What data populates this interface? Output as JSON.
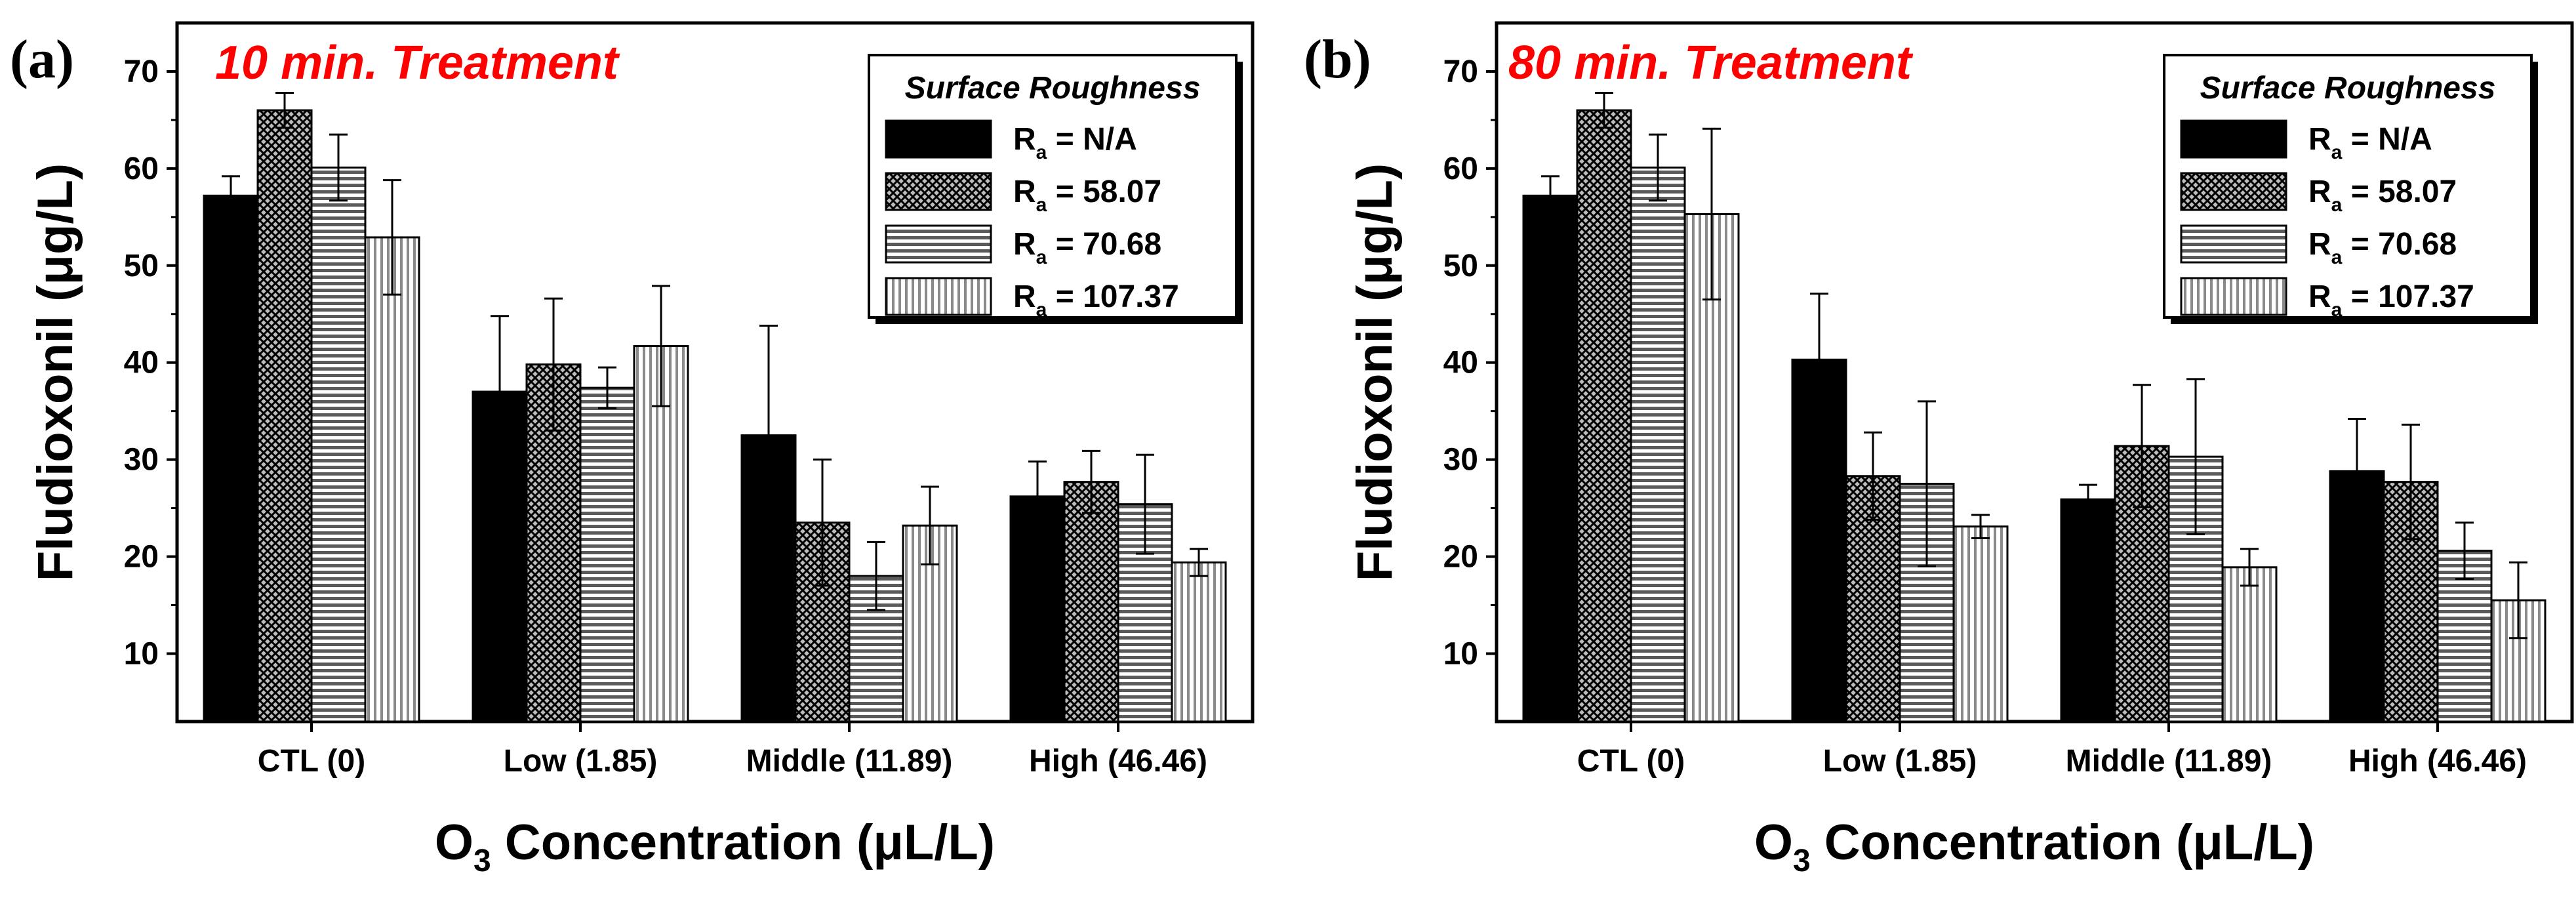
{
  "chart_data": [
    {
      "type": "bar",
      "panel": "(a)",
      "title": "10 min. Treatment",
      "xlabel": "O3 Concentration (μL/L)",
      "xlabel_main": "O",
      "xlabel_sub": "3",
      "xlabel_rest": " Concentration (μL/L)",
      "ylabel": "Fludioxonil (μg/L)",
      "ylim": [
        3,
        75
      ],
      "yticks": [
        10,
        20,
        30,
        40,
        50,
        60,
        70
      ],
      "categories": [
        "CTL (0)",
        "Low (1.85)",
        "Middle (11.89)",
        "High (46.46)"
      ],
      "legend_title": "Surface Roughness",
      "series": [
        {
          "name": "Ra = N/A",
          "prefix": "R",
          "sub": "a",
          "suffix": " = N/A",
          "pattern": "solid",
          "values": [
            57.2,
            37.0,
            32.5,
            26.2
          ],
          "errors": [
            2.0,
            7.8,
            11.3,
            3.6
          ]
        },
        {
          "name": "Ra = 58.07",
          "prefix": "R",
          "sub": "a",
          "suffix": " = 58.07",
          "pattern": "crosshatch",
          "values": [
            66.0,
            39.8,
            23.5,
            27.7
          ],
          "errors": [
            1.8,
            6.8,
            6.5,
            3.2
          ]
        },
        {
          "name": "Ra = 70.68",
          "prefix": "R",
          "sub": "a",
          "suffix": " = 70.68",
          "pattern": "horizontal",
          "values": [
            60.1,
            37.4,
            18.0,
            25.4
          ],
          "errors": [
            3.4,
            2.1,
            3.5,
            5.1
          ]
        },
        {
          "name": "Ra = 107.37",
          "prefix": "R",
          "sub": "a",
          "suffix": " = 107.37",
          "pattern": "vertical",
          "values": [
            52.9,
            41.7,
            23.2,
            19.4
          ],
          "errors": [
            5.9,
            6.2,
            4.0,
            1.4
          ]
        }
      ]
    },
    {
      "type": "bar",
      "panel": "(b)",
      "title": "80 min. Treatment",
      "xlabel": "O3 Concentration (μL/L)",
      "xlabel_main": "O",
      "xlabel_sub": "3",
      "xlabel_rest": " Concentration (μL/L)",
      "ylabel": "Fludioxonil (μg/L)",
      "ylim": [
        3,
        75
      ],
      "yticks": [
        10,
        20,
        30,
        40,
        50,
        60,
        70
      ],
      "categories": [
        "CTL (0)",
        "Low (1.85)",
        "Middle (11.89)",
        "High (46.46)"
      ],
      "legend_title": "Surface Roughness",
      "series": [
        {
          "name": "Ra = N/A",
          "prefix": "R",
          "sub": "a",
          "suffix": " = N/A",
          "pattern": "solid",
          "values": [
            57.2,
            40.3,
            25.9,
            28.8
          ],
          "errors": [
            2.0,
            6.8,
            1.5,
            5.4
          ]
        },
        {
          "name": "Ra = 58.07",
          "prefix": "R",
          "sub": "a",
          "suffix": " = 58.07",
          "pattern": "crosshatch",
          "values": [
            66.0,
            28.3,
            31.4,
            27.7
          ],
          "errors": [
            1.8,
            4.5,
            6.3,
            5.9
          ]
        },
        {
          "name": "Ra = 70.68",
          "prefix": "R",
          "sub": "a",
          "suffix": " = 70.68",
          "pattern": "horizontal",
          "values": [
            60.1,
            27.5,
            30.3,
            20.6
          ],
          "errors": [
            3.4,
            8.5,
            8.0,
            2.9
          ]
        },
        {
          "name": "Ra = 107.37",
          "prefix": "R",
          "sub": "a",
          "suffix": " = 107.37",
          "pattern": "vertical",
          "values": [
            55.3,
            23.1,
            18.9,
            15.5
          ],
          "errors": [
            8.8,
            1.2,
            1.9,
            3.9
          ]
        }
      ]
    }
  ]
}
